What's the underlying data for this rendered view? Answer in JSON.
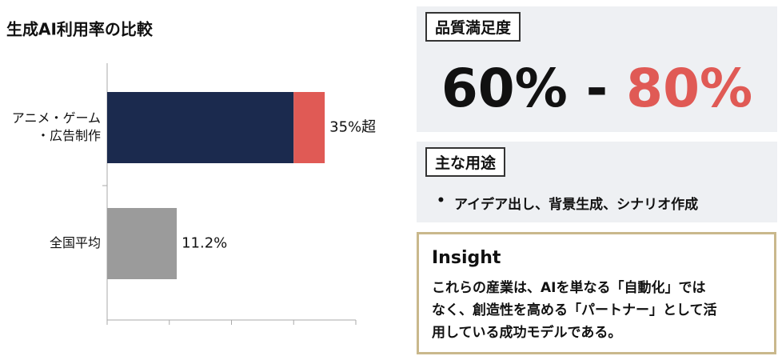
{
  "chart_data": {
    "type": "bar",
    "orientation": "horizontal",
    "title": "生成AI利用率の比較",
    "categories": [
      [
        "アニメ・ゲーム",
        "・広告制作"
      ],
      "全国平均"
    ],
    "series": [
      {
        "colors": [
          "#1b2a4e",
          "#9b9b9b"
        ],
        "values": [
          30,
          11.2
        ]
      },
      {
        "color": "#e05a55",
        "values": [
          5,
          null
        ]
      }
    ],
    "totals": [
      35,
      11.2
    ],
    "total_labels": [
      "35%超",
      "11.2%"
    ],
    "xlim": [
      0,
      40
    ],
    "xticks": [
      0,
      10,
      20,
      30,
      40
    ]
  },
  "panels": {
    "satisfaction": {
      "title": "品質満足度",
      "low": "60%",
      "separator": " - ",
      "high": "80%"
    },
    "uses": {
      "title": "主な用途",
      "bullet": "•",
      "items": [
        "アイデア出し、背景生成、シナリオ作成"
      ]
    },
    "insight": {
      "title": "Insight",
      "lines": [
        "これらの産業は、AIを単なる「自動化」では",
        "なく、創造性を高める「パートナー」として活",
        "用している成功モデルである。"
      ]
    }
  }
}
